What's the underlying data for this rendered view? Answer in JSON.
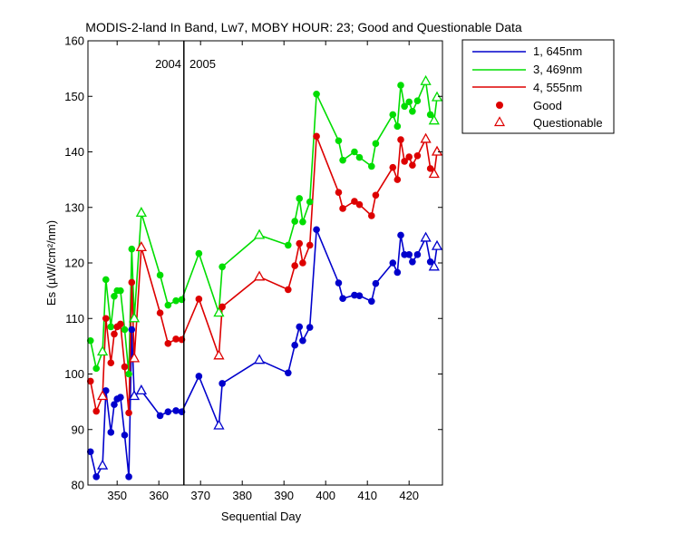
{
  "chart_data": {
    "type": "line",
    "title": "MODIS-2-land In Band,  Lw7, MOBY HOUR: 23;  Good and Questionable Data",
    "xlabel": "Sequential Day",
    "ylabel": "Es (µW/cm²/nm)",
    "xlim": [
      343,
      428
    ],
    "ylim": [
      80,
      160
    ],
    "xticks": [
      350,
      360,
      370,
      380,
      390,
      400,
      410,
      420
    ],
    "yticks": [
      80,
      90,
      100,
      110,
      120,
      130,
      140,
      150,
      160
    ],
    "year_divider": {
      "x": 366,
      "left_label": "2004",
      "right_label": "2005"
    },
    "legend_position": "outside-top-right",
    "legend": {
      "series": [
        "1, 645nm",
        "3, 469nm",
        "4, 555nm"
      ],
      "good_label": "Good",
      "questionable_label": "Questionable"
    },
    "colors": {
      "s1": "#0000cc",
      "s3": "#00dd00",
      "s4": "#dd0000",
      "marker_legend": "#dd0000"
    },
    "x": [
      343.6,
      345,
      346.5,
      347.3,
      348.5,
      349.3,
      350,
      350.8,
      351.8,
      352.8,
      353.5,
      354.1,
      355.8,
      360.3,
      362.2,
      364.1,
      365.5,
      369.6,
      374.4,
      375.2,
      384.1,
      391,
      392.6,
      393.7,
      394.5,
      396.2,
      397.8,
      403.1,
      404.1,
      406.9,
      408.1,
      411,
      412,
      416.1,
      417.2,
      418,
      418.9,
      420,
      420.8,
      422,
      424,
      425.1,
      426,
      426.7
    ],
    "questionable": [
      false,
      false,
      true,
      false,
      false,
      false,
      false,
      false,
      false,
      false,
      false,
      true,
      true,
      false,
      false,
      false,
      false,
      false,
      true,
      false,
      true,
      false,
      false,
      false,
      false,
      false,
      false,
      false,
      false,
      false,
      false,
      false,
      false,
      false,
      false,
      false,
      false,
      false,
      false,
      false,
      true,
      false,
      true,
      true
    ],
    "series": [
      {
        "name": "1, 645nm",
        "values": [
          86,
          81.5,
          83.5,
          97,
          89.5,
          94.5,
          95.5,
          95.8,
          89,
          81.5,
          108,
          96,
          97,
          92.5,
          93.2,
          93.4,
          93.2,
          99.6,
          90.7,
          98.3,
          102.5,
          100.2,
          105.2,
          108.5,
          106,
          108.4,
          126,
          116.4,
          113.6,
          114.2,
          114.1,
          113.1,
          116.3,
          120,
          118.3,
          125,
          121.5,
          121.5,
          120.2,
          121.5,
          124.5,
          120.2,
          119.3,
          123
        ]
      },
      {
        "name": "3, 469nm",
        "values": [
          106,
          101,
          104,
          117,
          108.5,
          114,
          115,
          115,
          108,
          100,
          122.5,
          110,
          129,
          117.8,
          112.4,
          113.2,
          113.4,
          121.7,
          111,
          119.3,
          125,
          123.2,
          127.5,
          131.6,
          127.4,
          131,
          150.4,
          142,
          138.5,
          140,
          139,
          137.4,
          141.5,
          146.7,
          144.6,
          152,
          148.2,
          149,
          147.3,
          149.2,
          152.7,
          146.7,
          145.6,
          149.8
        ]
      },
      {
        "name": "4, 555nm",
        "values": [
          98.7,
          93.3,
          96,
          110,
          102,
          107.2,
          108.5,
          109,
          101.3,
          93,
          116.5,
          102.8,
          122.8,
          111,
          105.5,
          106.3,
          106.2,
          113.5,
          103.3,
          112.1,
          117.5,
          115.2,
          119.5,
          123.5,
          120,
          123.2,
          142.8,
          132.7,
          129.8,
          131.1,
          130.5,
          128.5,
          132.2,
          137.2,
          135,
          142.2,
          138.3,
          139.1,
          137.6,
          139.3,
          142.3,
          137,
          136,
          140
        ]
      }
    ]
  }
}
